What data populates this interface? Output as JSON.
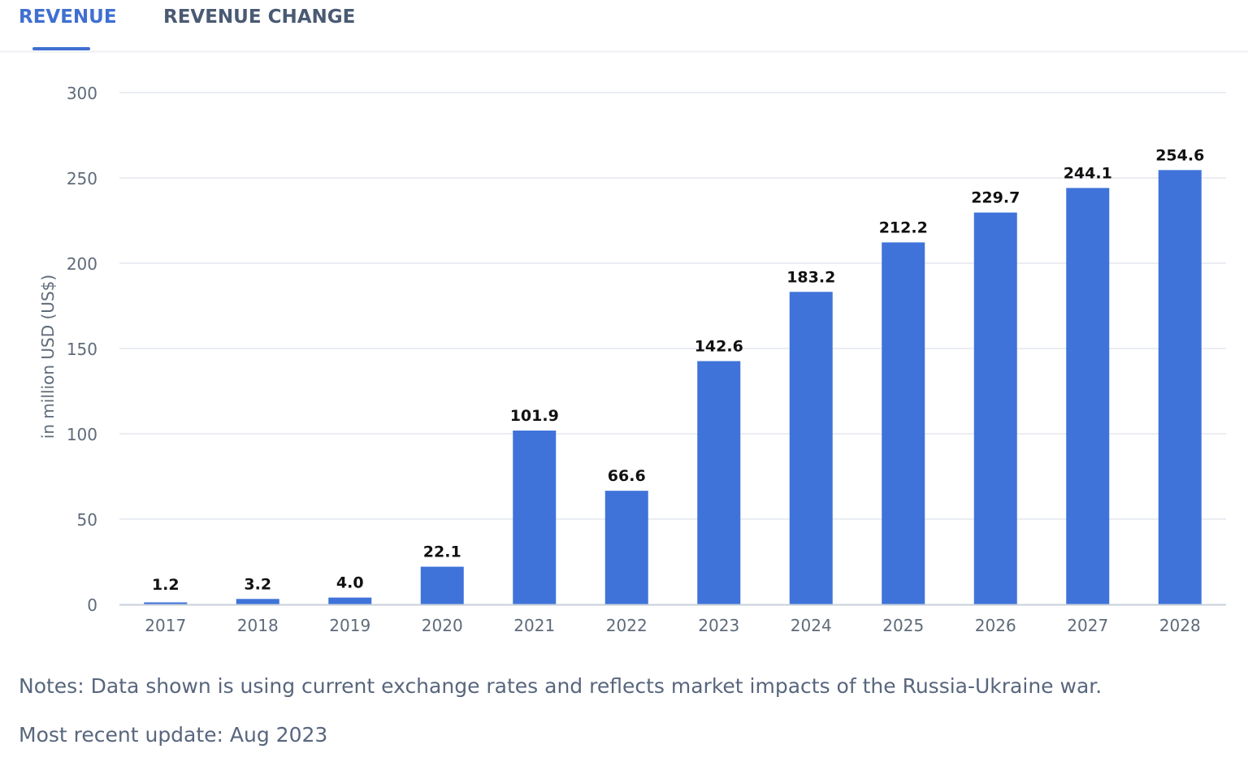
{
  "tabs": [
    {
      "label": "REVENUE",
      "active": true
    },
    {
      "label": "REVENUE CHANGE",
      "active": false
    }
  ],
  "colors": {
    "bar": "#3f73d9",
    "accent": "#3f6fd1",
    "grid": "#e3e7ee",
    "axis_text": "#5f6b7a",
    "label_text": "#111111"
  },
  "chart_data": {
    "type": "bar",
    "categories": [
      "2017",
      "2018",
      "2019",
      "2020",
      "2021",
      "2022",
      "2023",
      "2024",
      "2025",
      "2026",
      "2027",
      "2028"
    ],
    "values": [
      1.2,
      3.2,
      4.0,
      22.1,
      101.9,
      66.6,
      142.6,
      183.2,
      212.2,
      229.7,
      244.1,
      254.6
    ],
    "value_labels": [
      "1.2",
      "3.2",
      "4.0",
      "22.1",
      "101.9",
      "66.6",
      "142.6",
      "183.2",
      "212.2",
      "229.7",
      "244.1",
      "254.6"
    ],
    "ylabel": "in million USD (US$)",
    "ylim": [
      0,
      300
    ],
    "yticks": [
      "0",
      "50",
      "100",
      "150",
      "200",
      "250",
      "300"
    ],
    "grid": true,
    "legend": "none"
  },
  "notes": {
    "text": "Notes: Data shown is using current exchange rates and reflects market impacts of the Russia-Ukraine war.",
    "update": "Most recent update: Aug 2023"
  }
}
